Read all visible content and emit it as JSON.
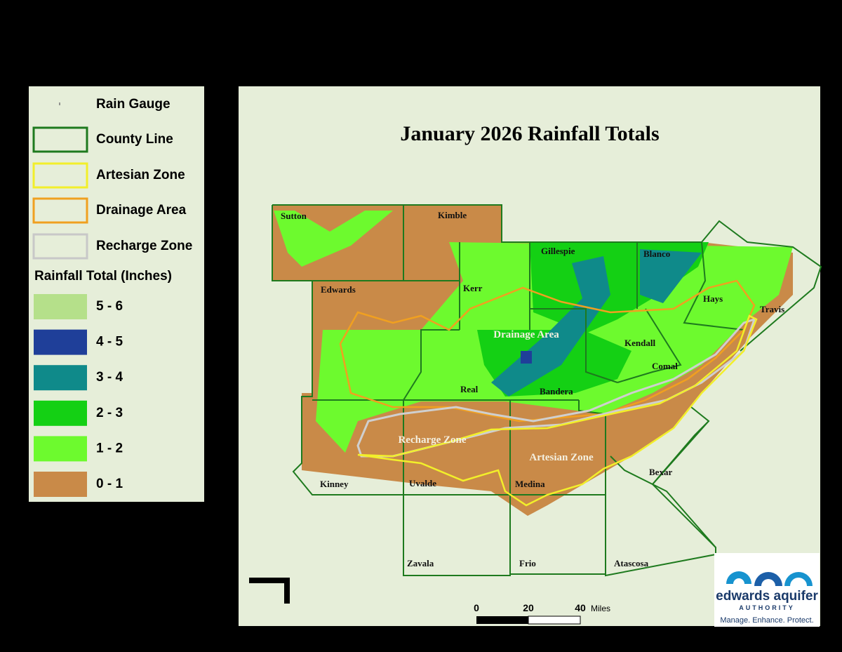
{
  "title": "January 2026 Rainfall Totals",
  "legend": {
    "features": [
      {
        "label": "Rain Gauge",
        "color": "#777777"
      },
      {
        "label": "County Line",
        "color": "#1e7a1e"
      },
      {
        "label": "Artesian Zone",
        "color": "#f2ef2a"
      },
      {
        "label": "Drainage Area",
        "color": "#f0a020"
      },
      {
        "label": "Recharge Zone",
        "color": "#c8c8c8"
      }
    ],
    "rainfall_title": "Rainfall Total (Inches)",
    "classes": [
      {
        "label": "5 - 6",
        "color": "#b5e08a"
      },
      {
        "label": "4 - 5",
        "color": "#1f3f99"
      },
      {
        "label": "3 - 4",
        "color": "#0f8a8a"
      },
      {
        "label": "2 - 3",
        "color": "#14d014"
      },
      {
        "label": "1 - 2",
        "color": "#6dfa2e"
      },
      {
        "label": "0 - 1",
        "color": "#c98a48"
      }
    ]
  },
  "counties": [
    "Sutton",
    "Kimble",
    "Gillespie",
    "Blanco",
    "Edwards",
    "Kerr",
    "Hays",
    "Travis",
    "Kendall",
    "Comal",
    "Real",
    "Bandera",
    "Bexar",
    "Kinney",
    "Uvalde",
    "Medina",
    "Zavala",
    "Frio",
    "Atascosa"
  ],
  "zones": [
    "Drainage Area",
    "Recharge Zone",
    "Artesian Zone"
  ],
  "scale_bar": {
    "ticks": [
      0,
      20,
      40
    ],
    "unit": "Miles"
  },
  "logo": {
    "name": "edwards aquifer",
    "subtitle": "AUTHORITY",
    "tagline": "Manage. Enhance. Protect."
  }
}
